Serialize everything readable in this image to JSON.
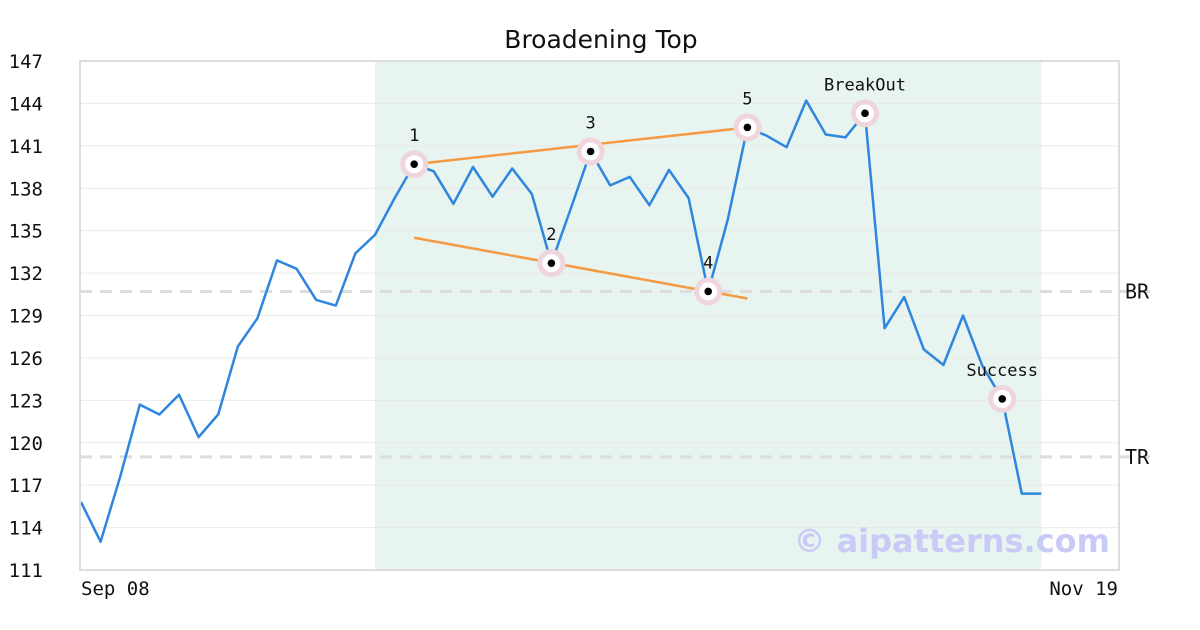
{
  "chart_data": {
    "type": "line",
    "title": "Broadening Top",
    "ylim": [
      111,
      147
    ],
    "yticks": [
      111,
      114,
      117,
      120,
      123,
      126,
      129,
      132,
      135,
      138,
      141,
      144,
      147
    ],
    "xtick_labels": [
      "Sep 08",
      "Nov 19"
    ],
    "grid": "horizontal",
    "colors": {
      "price": "#2e86de",
      "trendline": "#f59a42",
      "highlight": "#e8f4ef",
      "marker_ring": "#efd6dd",
      "reference": "#dddddd"
    },
    "series": [
      {
        "values": [
          115.8,
          113.0,
          117.6,
          122.7,
          122.0,
          123.4,
          120.4,
          122.0,
          126.8,
          128.8,
          132.9,
          132.3,
          130.1,
          129.7,
          133.4,
          134.7,
          137.3,
          139.7,
          139.2,
          136.9,
          139.5,
          137.4,
          139.4,
          137.6,
          132.7,
          136.6,
          140.6,
          138.2,
          138.8,
          136.8,
          139.3,
          137.3,
          130.7,
          135.8,
          142.3,
          141.7,
          140.9,
          144.2,
          141.8,
          141.6,
          143.3,
          128.1,
          130.3,
          126.6,
          125.5,
          129.0,
          125.4,
          123.1,
          116.4,
          116.4
        ]
      }
    ],
    "highlight_range": [
      15,
      49
    ],
    "reference_lines": [
      {
        "label": "BR",
        "y": 130.7
      },
      {
        "label": "TR",
        "y": 119.0
      }
    ],
    "points": [
      {
        "label": "1",
        "x": 17,
        "y": 139.7
      },
      {
        "label": "2",
        "x": 24,
        "y": 132.7
      },
      {
        "label": "3",
        "x": 26,
        "y": 140.6
      },
      {
        "label": "4",
        "x": 32,
        "y": 130.7
      },
      {
        "label": "5",
        "x": 34,
        "y": 142.3
      },
      {
        "label": "BreakOut",
        "x": 40,
        "y": 143.3
      },
      {
        "label": "Success",
        "x": 47,
        "y": 123.1
      }
    ],
    "trendlines": [
      {
        "from": [
          17,
          139.7
        ],
        "to": [
          34,
          142.3
        ]
      },
      {
        "from": [
          17,
          134.5
        ],
        "to": [
          34,
          130.2
        ]
      }
    ]
  },
  "watermark": "© aipatterns.com"
}
